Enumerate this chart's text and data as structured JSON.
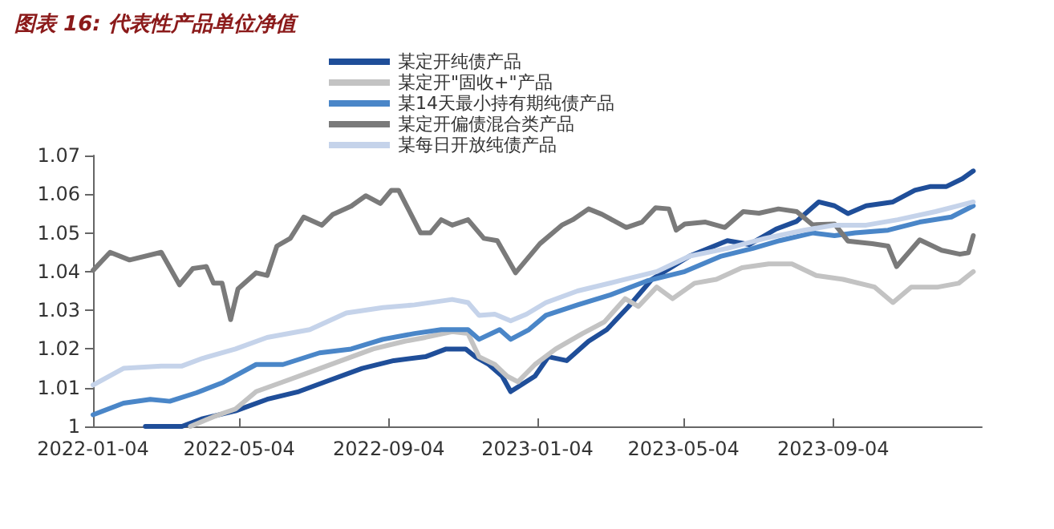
{
  "chart_data": {
    "type": "line",
    "title": "图表 16: 代表性产品单位净值",
    "xlim": [
      "2022-01-04",
      "2024-01-04"
    ],
    "xticks": [
      "2022-01-04",
      "2022-05-04",
      "2022-09-04",
      "2023-01-04",
      "2023-05-04",
      "2023-09-04"
    ],
    "ylim": [
      1,
      1.07
    ],
    "yticks": [
      1,
      1.01,
      1.02,
      1.03,
      1.04,
      1.05,
      1.06,
      1.07
    ],
    "grid": false,
    "legend": "top",
    "marker": "none",
    "line_style": "solid",
    "series": [
      {
        "name": "某定开纯债产品",
        "color": "#1f4e99",
        "x": [
          "2022-02-16",
          "2022-03-18",
          "2022-04-04",
          "2022-05-01",
          "2022-05-27",
          "2022-06-22",
          "2022-07-18",
          "2022-08-13",
          "2022-09-08",
          "2022-10-04",
          "2022-10-21",
          "2022-11-06",
          "2022-11-14",
          "2022-11-25",
          "2022-12-06",
          "2022-12-13",
          "2022-12-18",
          "2023-01-02",
          "2023-01-13",
          "2023-01-28",
          "2023-02-15",
          "2023-03-02",
          "2023-03-20",
          "2023-04-08",
          "2023-05-09",
          "2023-06-09",
          "2023-06-27",
          "2023-07-19",
          "2023-08-05",
          "2023-08-23",
          "2023-09-05",
          "2023-09-16",
          "2023-10-01",
          "2023-10-23",
          "2023-11-10",
          "2023-11-23",
          "2023-12-06",
          "2023-12-19",
          "2023-12-28"
        ],
        "values": [
          1.0,
          1.0,
          1.002,
          1.004,
          1.007,
          1.009,
          1.012,
          1.015,
          1.017,
          1.018,
          1.02,
          1.02,
          1.018,
          1.016,
          1.013,
          1.009,
          1.01,
          1.013,
          1.018,
          1.017,
          1.022,
          1.025,
          1.031,
          1.038,
          1.044,
          1.048,
          1.047,
          1.051,
          1.053,
          1.058,
          1.057,
          1.055,
          1.057,
          1.058,
          1.061,
          1.062,
          1.062,
          1.064,
          1.066
        ]
      },
      {
        "name": "某定开\"固收+\"产品",
        "color": "#c3c3c3",
        "x": [
          "2022-03-25",
          "2022-04-13",
          "2022-05-01",
          "2022-05-18",
          "2022-06-09",
          "2022-07-01",
          "2022-07-27",
          "2022-08-22",
          "2022-09-17",
          "2022-10-04",
          "2022-10-26",
          "2022-11-08",
          "2022-11-17",
          "2022-11-30",
          "2022-12-10",
          "2022-12-19",
          "2023-01-02",
          "2023-01-19",
          "2023-02-10",
          "2023-02-28",
          "2023-03-17",
          "2023-03-28",
          "2023-04-12",
          "2023-04-25",
          "2023-05-13",
          "2023-05-31",
          "2023-06-21",
          "2023-07-13",
          "2023-08-01",
          "2023-08-21",
          "2023-09-12",
          "2023-10-08",
          "2023-10-23",
          "2023-11-07",
          "2023-11-29",
          "2023-12-16",
          "2023-12-28"
        ],
        "values": [
          1.0,
          1.0025,
          1.0045,
          1.009,
          1.0115,
          1.014,
          1.017,
          1.02,
          1.022,
          1.023,
          1.0245,
          1.024,
          1.018,
          1.016,
          1.013,
          1.0115,
          1.016,
          1.02,
          1.024,
          1.027,
          1.033,
          1.031,
          1.036,
          1.033,
          1.037,
          1.038,
          1.041,
          1.042,
          1.042,
          1.039,
          1.038,
          1.036,
          1.032,
          1.036,
          1.036,
          1.037,
          1.04
        ]
      },
      {
        "name": "某14天最小持有期纯债产品",
        "color": "#4a86c8",
        "x": [
          "2022-01-04",
          "2022-01-29",
          "2022-02-20",
          "2022-03-08",
          "2022-03-30",
          "2022-04-21",
          "2022-05-18",
          "2022-06-09",
          "2022-07-09",
          "2022-08-04",
          "2022-08-30",
          "2022-09-25",
          "2022-10-17",
          "2022-11-08",
          "2022-11-17",
          "2022-12-04",
          "2022-12-13",
          "2022-12-28",
          "2023-01-11",
          "2023-02-06",
          "2023-03-05",
          "2023-04-04",
          "2023-05-05",
          "2023-06-04",
          "2023-06-30",
          "2023-07-22",
          "2023-08-18",
          "2023-09-05",
          "2023-09-22",
          "2023-10-19",
          "2023-11-14",
          "2023-12-10",
          "2023-12-28"
        ],
        "values": [
          1.003,
          1.006,
          1.007,
          1.0065,
          1.0087,
          1.0114,
          1.016,
          1.016,
          1.019,
          1.02,
          1.0225,
          1.024,
          1.025,
          1.025,
          1.0225,
          1.025,
          1.0225,
          1.025,
          1.0287,
          1.0314,
          1.034,
          1.0376,
          1.04,
          1.044,
          1.046,
          1.048,
          1.05,
          1.0493,
          1.05,
          1.0507,
          1.0528,
          1.0541,
          1.057
        ]
      },
      {
        "name": "某定开偏债混合类产品",
        "color": "#7a7a7a",
        "x": [
          "2022-01-04",
          "2022-01-18",
          "2022-02-03",
          "2022-03-01",
          "2022-03-16",
          "2022-03-27",
          "2022-04-07",
          "2022-04-13",
          "2022-04-20",
          "2022-04-27",
          "2022-05-03",
          "2022-05-18",
          "2022-05-27",
          "2022-06-04",
          "2022-06-15",
          "2022-06-26",
          "2022-07-11",
          "2022-07-20",
          "2022-08-04",
          "2022-08-16",
          "2022-08-28",
          "2022-09-06",
          "2022-09-12",
          "2022-09-30",
          "2022-10-08",
          "2022-10-17",
          "2022-10-26",
          "2022-11-08",
          "2022-11-21",
          "2022-12-02",
          "2022-12-17",
          "2023-01-06",
          "2023-01-24",
          "2023-02-02",
          "2023-02-15",
          "2023-02-26",
          "2023-03-18",
          "2023-03-31",
          "2023-04-11",
          "2023-04-22",
          "2023-04-28",
          "2023-05-05",
          "2023-05-22",
          "2023-06-07",
          "2023-06-22",
          "2023-07-05",
          "2023-07-21",
          "2023-08-05",
          "2023-08-18",
          "2023-09-05",
          "2023-09-16",
          "2023-10-06",
          "2023-10-19",
          "2023-10-26",
          "2023-11-14",
          "2023-12-02",
          "2023-12-17",
          "2023-12-24",
          "2023-12-28"
        ],
        "values": [
          1.0403,
          1.045,
          1.043,
          1.045,
          1.0366,
          1.0408,
          1.0413,
          1.037,
          1.037,
          1.0276,
          1.0355,
          1.0397,
          1.039,
          1.0466,
          1.0486,
          1.0541,
          1.052,
          1.0548,
          1.0569,
          1.0596,
          1.0576,
          1.061,
          1.061,
          1.05,
          1.05,
          1.0534,
          1.052,
          1.0534,
          1.0486,
          1.048,
          1.0397,
          1.0472,
          1.052,
          1.0534,
          1.0562,
          1.0548,
          1.0514,
          1.0528,
          1.0565,
          1.0562,
          1.0507,
          1.0523,
          1.0528,
          1.0514,
          1.0555,
          1.0551,
          1.0562,
          1.0555,
          1.0521,
          1.0523,
          1.0479,
          1.0472,
          1.0466,
          1.0413,
          1.0482,
          1.0455,
          1.0445,
          1.0449,
          1.0493
        ]
      },
      {
        "name": "某每日开放纯债产品",
        "color": "#c5d3ea",
        "x": [
          "2022-01-04",
          "2022-01-29",
          "2022-03-01",
          "2022-03-18",
          "2022-04-04",
          "2022-05-01",
          "2022-05-27",
          "2022-07-01",
          "2022-07-31",
          "2022-08-30",
          "2022-09-25",
          "2022-10-26",
          "2022-11-08",
          "2022-11-17",
          "2022-11-30",
          "2022-12-13",
          "2022-12-26",
          "2023-01-11",
          "2023-02-06",
          "2023-03-12",
          "2023-04-12",
          "2023-05-09",
          "2023-06-09",
          "2023-07-10",
          "2023-08-11",
          "2023-09-05",
          "2023-10-01",
          "2023-10-27",
          "2023-11-27",
          "2023-12-28"
        ],
        "values": [
          1.0107,
          1.015,
          1.0156,
          1.0156,
          1.0176,
          1.02,
          1.023,
          1.025,
          1.0293,
          1.0307,
          1.0314,
          1.0328,
          1.032,
          1.0287,
          1.029,
          1.0273,
          1.029,
          1.032,
          1.035,
          1.0376,
          1.04,
          1.044,
          1.046,
          1.0486,
          1.0507,
          1.052,
          1.052,
          1.0534,
          1.0555,
          1.058
        ]
      }
    ]
  }
}
